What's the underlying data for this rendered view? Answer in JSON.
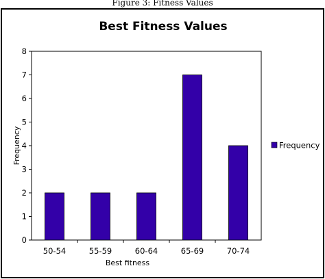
{
  "figure_caption": "Figure 3: Fitness Values",
  "chart_data": {
    "type": "bar",
    "title": "Best Fitness Values",
    "xlabel": "Best fitness",
    "ylabel": "Frequency",
    "categories": [
      "50-54",
      "55-59",
      "60-64",
      "65-69",
      "70-74"
    ],
    "series": [
      {
        "name": "Frequency",
        "values": [
          2,
          2,
          2,
          7,
          4
        ],
        "color": "#3300A8"
      }
    ],
    "ylim": [
      0,
      8
    ],
    "yticks": [
      0,
      1,
      2,
      3,
      4,
      5,
      6,
      7,
      8
    ],
    "grid": false,
    "legend_position": "right"
  }
}
